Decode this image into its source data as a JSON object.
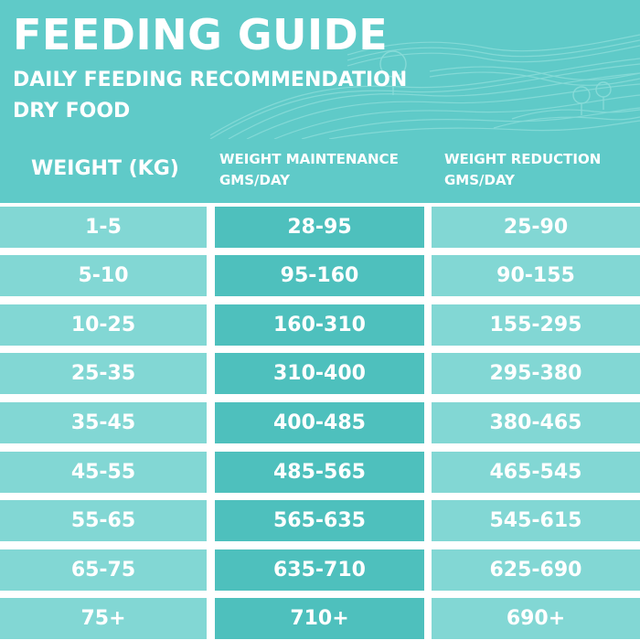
{
  "header": {
    "title": "FEEDING GUIDE",
    "subtitle": "DAILY FEEDING RECOMMENDATION",
    "food_type": "DRY FOOD"
  },
  "columns": {
    "weight": "WEIGHT (KG)",
    "maintenance_line1": "WEIGHT MAINTENANCE",
    "maintenance_line2": "GMS/DAY",
    "reduction_line1": "WEIGHT REDUCTION",
    "reduction_line2": "GMS/DAY"
  },
  "rows": [
    {
      "weight": "1-5",
      "maintenance": "28-95",
      "reduction": "25-90"
    },
    {
      "weight": "5-10",
      "maintenance": "95-160",
      "reduction": "90-155"
    },
    {
      "weight": "10-25",
      "maintenance": "160-310",
      "reduction": "155-295"
    },
    {
      "weight": "25-35",
      "maintenance": "310-400",
      "reduction": "295-380"
    },
    {
      "weight": "35-45",
      "maintenance": "400-485",
      "reduction": "380-465"
    },
    {
      "weight": "45-55",
      "maintenance": "485-565",
      "reduction": "465-545"
    },
    {
      "weight": "55-65",
      "maintenance": "565-635",
      "reduction": "545-615"
    },
    {
      "weight": "65-75",
      "maintenance": "635-710",
      "reduction": "625-690"
    },
    {
      "weight": "75+",
      "maintenance": "710+",
      "reduction": "690+"
    }
  ],
  "colors": {
    "header_teal": "#5fcac8",
    "light_cell": "#82d7d4",
    "dark_cell": "#4ec0bd",
    "text": "#ffffff"
  },
  "decoration": "hills-landscape-lines"
}
